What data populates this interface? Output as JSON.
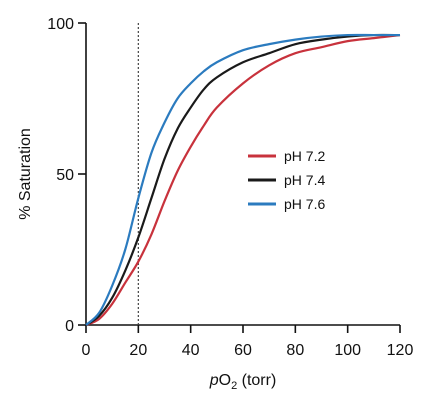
{
  "chart_data": {
    "type": "line",
    "title": "",
    "xlabel_prefix": "p",
    "xlabel_main": "O",
    "xlabel_sub": "2",
    "xlabel_suffix": " (torr)",
    "ylabel": "% Saturation",
    "xlim": [
      0,
      120
    ],
    "ylim": [
      0,
      100
    ],
    "x_ticks": [
      0,
      20,
      40,
      60,
      80,
      100,
      120
    ],
    "y_ticks": [
      0,
      50,
      100
    ],
    "x_tick_labels": [
      "0",
      "20",
      "40",
      "60",
      "80",
      "100",
      "120"
    ],
    "y_tick_labels": [
      "0",
      "50",
      "100"
    ],
    "reference_line_x": 20,
    "grid": false,
    "legend_position": "center-right",
    "series": [
      {
        "name": "pH 7.2",
        "color": "#c8323c",
        "x": [
          0,
          5,
          10,
          15,
          20,
          25,
          30,
          35,
          40,
          45,
          50,
          60,
          70,
          80,
          90,
          100,
          110,
          120
        ],
        "y": [
          0,
          2,
          7,
          14,
          21,
          30,
          41,
          51,
          59,
          66,
          72,
          80,
          86,
          90,
          92,
          94,
          95,
          96
        ]
      },
      {
        "name": "pH 7.4",
        "color": "#1a1a1a",
        "x": [
          0,
          5,
          10,
          15,
          20,
          25,
          30,
          35,
          40,
          45,
          50,
          60,
          70,
          80,
          90,
          100,
          110,
          120
        ],
        "y": [
          0,
          3,
          9,
          18,
          29,
          42,
          55,
          65,
          72,
          78,
          82,
          87,
          90,
          93,
          94.5,
          95.5,
          96,
          96
        ]
      },
      {
        "name": "pH 7.6",
        "color": "#2b7bbf",
        "x": [
          0,
          5,
          10,
          15,
          20,
          25,
          30,
          35,
          40,
          45,
          50,
          60,
          70,
          80,
          90,
          100,
          110,
          120
        ],
        "y": [
          0,
          4,
          13,
          25,
          42,
          57,
          67,
          75,
          80,
          84,
          87,
          91,
          93,
          94.5,
          95.5,
          96,
          96,
          96
        ]
      }
    ]
  }
}
